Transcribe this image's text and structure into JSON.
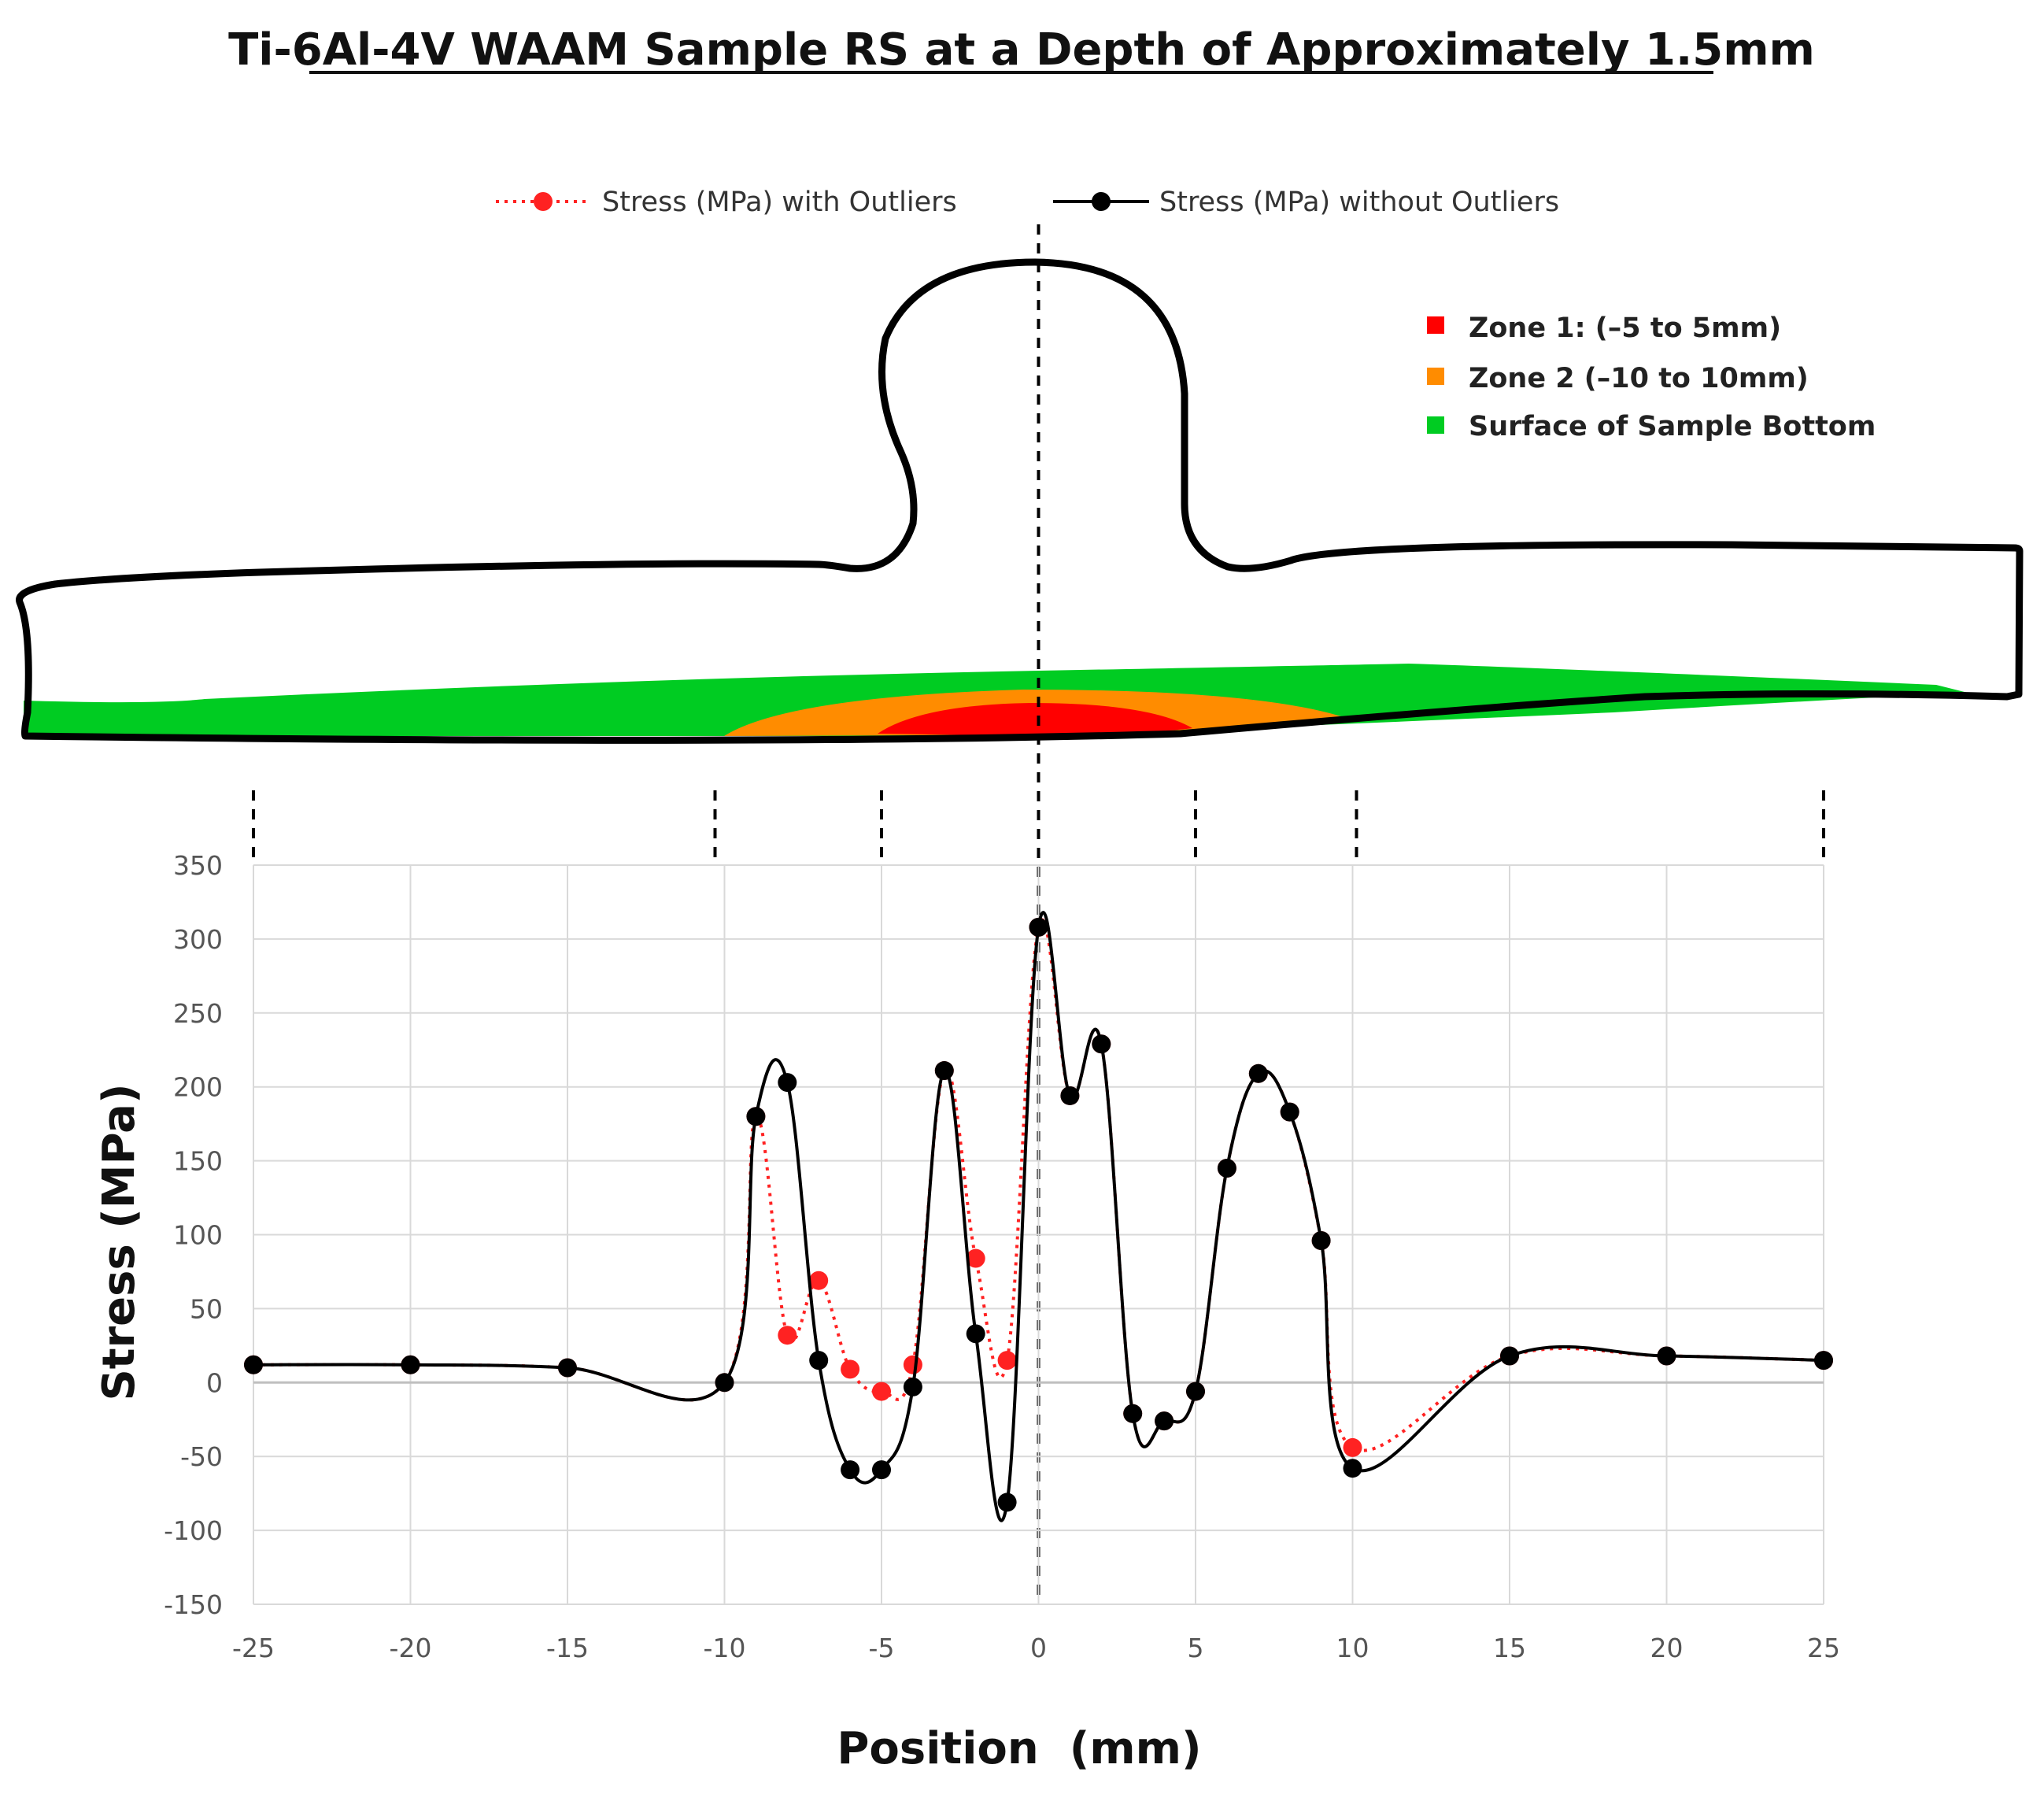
{
  "colors": {
    "with_outliers": "#ff2222",
    "without_outliers": "#000000",
    "zone1": "#ff0000",
    "zone2": "#ff8c00",
    "surface": "#00cc22",
    "grid": "#d9d9d9"
  },
  "chart_data": {
    "type": "line",
    "title": "Ti-6Al-4V WAAM Sample RS at a Depth of Approximately 1.5mm",
    "xlabel": "Position  (mm)",
    "ylabel": "Stress (MPa)",
    "xlim": [
      -25,
      25
    ],
    "ylim": [
      -150,
      350
    ],
    "xticks": [
      -25,
      -20,
      -15,
      -10,
      -5,
      0,
      5,
      10,
      15,
      20,
      25
    ],
    "yticks": [
      -150,
      -100,
      -50,
      0,
      50,
      100,
      150,
      200,
      250,
      300,
      350
    ],
    "grid": true,
    "legend_position": "top",
    "series": [
      {
        "name": "Stress (MPa) with Outliers",
        "style": "dotted-red",
        "x": [
          -25,
          -20,
          -15,
          -10,
          -9,
          -8,
          -7,
          -6,
          -5,
          -4,
          -3,
          -2,
          -1,
          0,
          1,
          2,
          3,
          4,
          5,
          6,
          7,
          8,
          9,
          10,
          15,
          20,
          25
        ],
        "values": [
          12,
          12,
          10,
          0,
          180,
          32,
          69,
          9,
          -6,
          12,
          211,
          84,
          15,
          308,
          194,
          229,
          -21,
          -26,
          -6,
          145,
          209,
          183,
          96,
          -44,
          18,
          18,
          15
        ]
      },
      {
        "name": "Stress (MPa) without Outliers",
        "style": "solid-black",
        "x": [
          -25,
          -20,
          -15,
          -10,
          -9,
          -8,
          -7,
          -6,
          -5,
          -4,
          -3,
          -2,
          -1,
          0,
          1,
          2,
          3,
          4,
          5,
          6,
          7,
          8,
          9,
          10,
          15,
          20,
          25
        ],
        "values": [
          12,
          12,
          10,
          0,
          180,
          203,
          15,
          -59,
          -59,
          -3,
          211,
          33,
          -81,
          308,
          194,
          229,
          -21,
          -26,
          -6,
          145,
          209,
          183,
          96,
          -58,
          18,
          18,
          15
        ]
      }
    ],
    "schematic": {
      "legend": [
        {
          "label": "Zone 1: (–5 to 5mm)",
          "color_key": "zone1"
        },
        {
          "label": "Zone 2 (–10 to 10mm)",
          "color_key": "zone2"
        },
        {
          "label": "Surface of Sample Bottom",
          "color_key": "surface"
        }
      ],
      "zone1_range_mm": [
        -5,
        5
      ],
      "zone2_range_mm": [
        -10,
        10
      ],
      "marker_positions_mm": [
        -25,
        -10,
        -5,
        0,
        5,
        10,
        25
      ]
    }
  }
}
